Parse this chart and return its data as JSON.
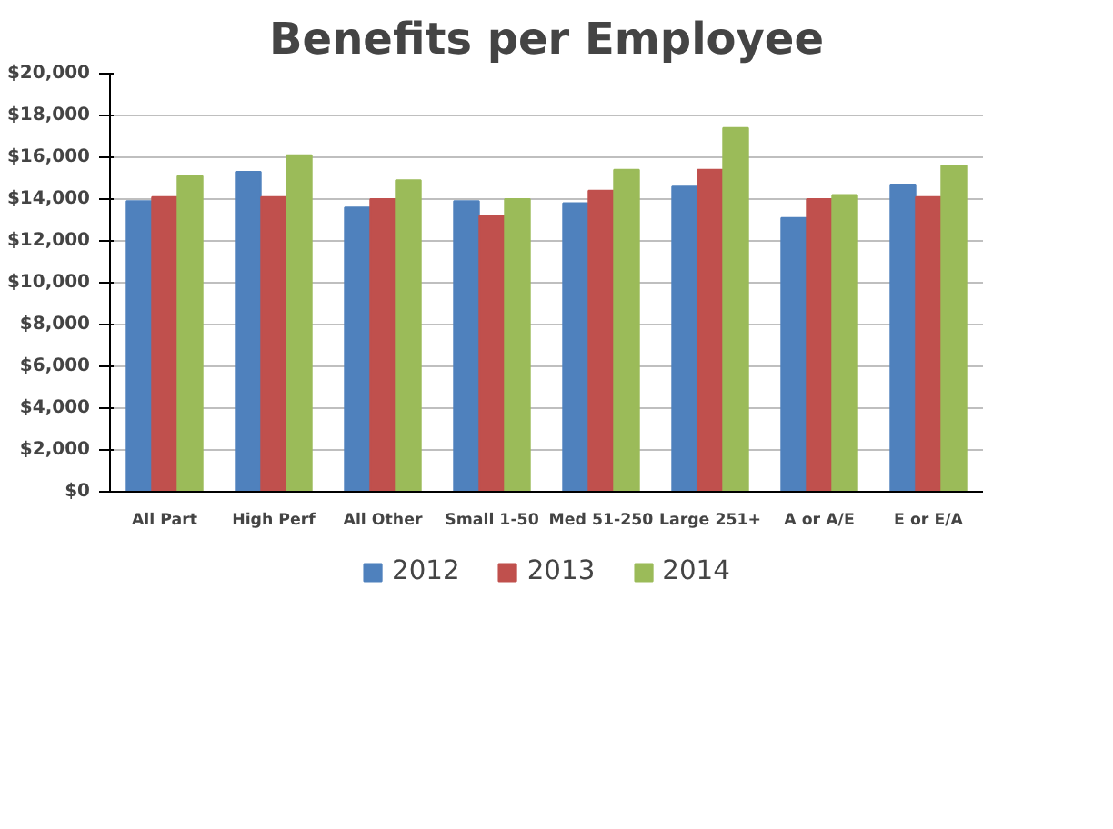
{
  "chart_data": {
    "type": "bar",
    "title": "Benefits per Employee",
    "categories": [
      "All Part",
      "High Perf",
      "All Other",
      "Small 1-50",
      "Med 51-250",
      "Large 251+",
      "A or A/E",
      "E or E/A"
    ],
    "series": [
      {
        "name": "2012",
        "color": "#4f81bd",
        "values": [
          13900,
          15300,
          13600,
          13900,
          13800,
          14600,
          13100,
          14700
        ]
      },
      {
        "name": "2013",
        "color": "#c0504d",
        "values": [
          14100,
          14100,
          14000,
          13200,
          14400,
          15400,
          14000,
          14100
        ]
      },
      {
        "name": "2014",
        "color": "#9bbb59",
        "values": [
          15100,
          16100,
          14900,
          14000,
          15400,
          17400,
          14200,
          15600
        ]
      }
    ],
    "ylim": [
      0,
      20000
    ],
    "yticks": [
      {
        "value": 0,
        "label": "$0"
      },
      {
        "value": 2000,
        "label": "$2,000"
      },
      {
        "value": 4000,
        "label": "$4,000"
      },
      {
        "value": 6000,
        "label": "$6,000"
      },
      {
        "value": 8000,
        "label": "$8,000"
      },
      {
        "value": 10000,
        "label": "$10,000"
      },
      {
        "value": 12000,
        "label": "$12,000"
      },
      {
        "value": 14000,
        "label": "$14,000"
      },
      {
        "value": 16000,
        "label": "$16,000"
      },
      {
        "value": 18000,
        "label": "$18,000"
      },
      {
        "value": 20000,
        "label": "$20,000"
      }
    ],
    "grid": "y",
    "legend": "bottom"
  }
}
